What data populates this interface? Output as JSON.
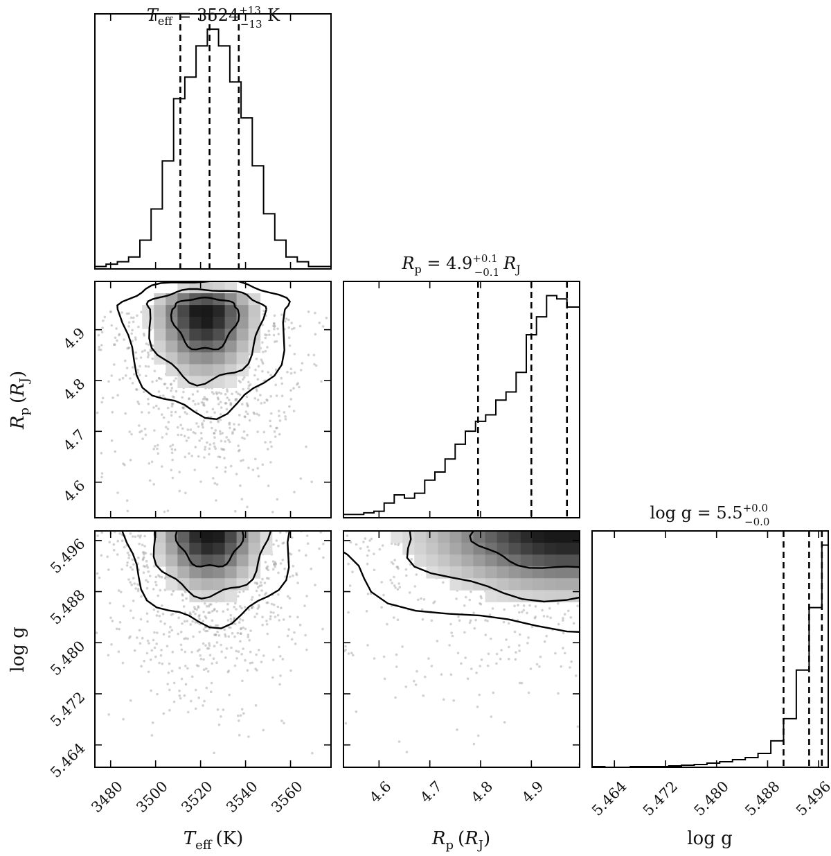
{
  "chart_data": {
    "type": "corner",
    "parameters": [
      {
        "key": "teff",
        "label_text": "T",
        "label_sub": "eff",
        "label_unit": "(K)",
        "range": [
          3473,
          3578
        ],
        "ticks": [
          "3480",
          "3500",
          "3520",
          "3540",
          "3560"
        ]
      },
      {
        "key": "rp",
        "label_text": "R",
        "label_sub": "p",
        "label_unit_open": "(",
        "label_unit_sym": "R",
        "label_unit_sub": "J",
        "label_unit_close": ")",
        "range": [
          4.53,
          4.995
        ],
        "ticks": [
          "4.6",
          "4.7",
          "4.8",
          "4.9"
        ]
      },
      {
        "key": "logg",
        "label_text": "log g",
        "range": [
          5.4605,
          5.4975
        ],
        "ticks": [
          "5.464",
          "5.472",
          "5.480",
          "5.488",
          "5.496"
        ]
      }
    ],
    "titles": {
      "teff": {
        "name": "T",
        "sub": "eff",
        "eq": " = 3524",
        "sup": "+13",
        "low": "−13",
        "unit": " K"
      },
      "rp": {
        "name": "R",
        "sub": "p",
        "eq": " = 4.9",
        "sup": "+0.1",
        "low": "−0.1",
        "unit_sym": "R",
        "unit_sub": "J"
      },
      "logg": {
        "name": "log g",
        "eq": " = 5.5",
        "sup": "+0.0",
        "low": "−0.0"
      }
    },
    "histograms": {
      "teff": {
        "edges": [
          3473,
          3478,
          3483,
          3488,
          3493,
          3498,
          3503,
          3508,
          3513,
          3518,
          3523,
          3528,
          3533,
          3538,
          3543,
          3548,
          3553,
          3558,
          3563,
          3568,
          3573,
          3578
        ],
        "values": [
          1,
          2,
          3,
          5,
          12,
          25,
          45,
          71,
          80,
          93,
          100,
          93,
          78,
          63,
          43,
          23,
          12,
          5,
          3,
          1,
          1
        ],
        "quantiles": [
          3511,
          3524,
          3537
        ]
      },
      "rp": {
        "edges": [
          4.53,
          4.55,
          4.57,
          4.59,
          4.61,
          4.63,
          4.65,
          4.67,
          4.69,
          4.71,
          4.73,
          4.75,
          4.77,
          4.79,
          4.81,
          4.83,
          4.85,
          4.87,
          4.89,
          4.91,
          4.93,
          4.95,
          4.97,
          4.995
        ],
        "values": [
          2,
          2,
          3,
          4,
          9,
          14,
          12,
          15,
          23,
          28,
          36,
          45,
          53,
          59,
          63,
          72,
          77,
          89,
          112,
          123,
          136,
          134,
          129
        ],
        "quantiles": [
          4.795,
          4.9,
          4.97
        ]
      },
      "logg": {
        "edges": [
          5.4605,
          5.4625,
          5.4645,
          5.4665,
          5.4685,
          5.4705,
          5.4725,
          5.4745,
          5.4765,
          5.4785,
          5.4805,
          5.4825,
          5.4845,
          5.4865,
          5.4885,
          5.4905,
          5.4925,
          5.4945,
          5.4965,
          5.4975
        ],
        "values": [
          1,
          0,
          0,
          1,
          1,
          1,
          2,
          3,
          4,
          6,
          8,
          11,
          14,
          20,
          38,
          70,
          140,
          230,
          320
        ],
        "quantiles": [
          5.4905,
          5.4945,
          5.4965
        ]
      }
    },
    "density_peaks": {
      "teff_rp": [
        3522,
        4.94
      ],
      "teff_logg": [
        3524,
        5.4975
      ],
      "rp_logg": [
        4.97,
        5.4975
      ]
    },
    "contour_line_style": "solid black",
    "quantile_line_style": "dashed black"
  }
}
